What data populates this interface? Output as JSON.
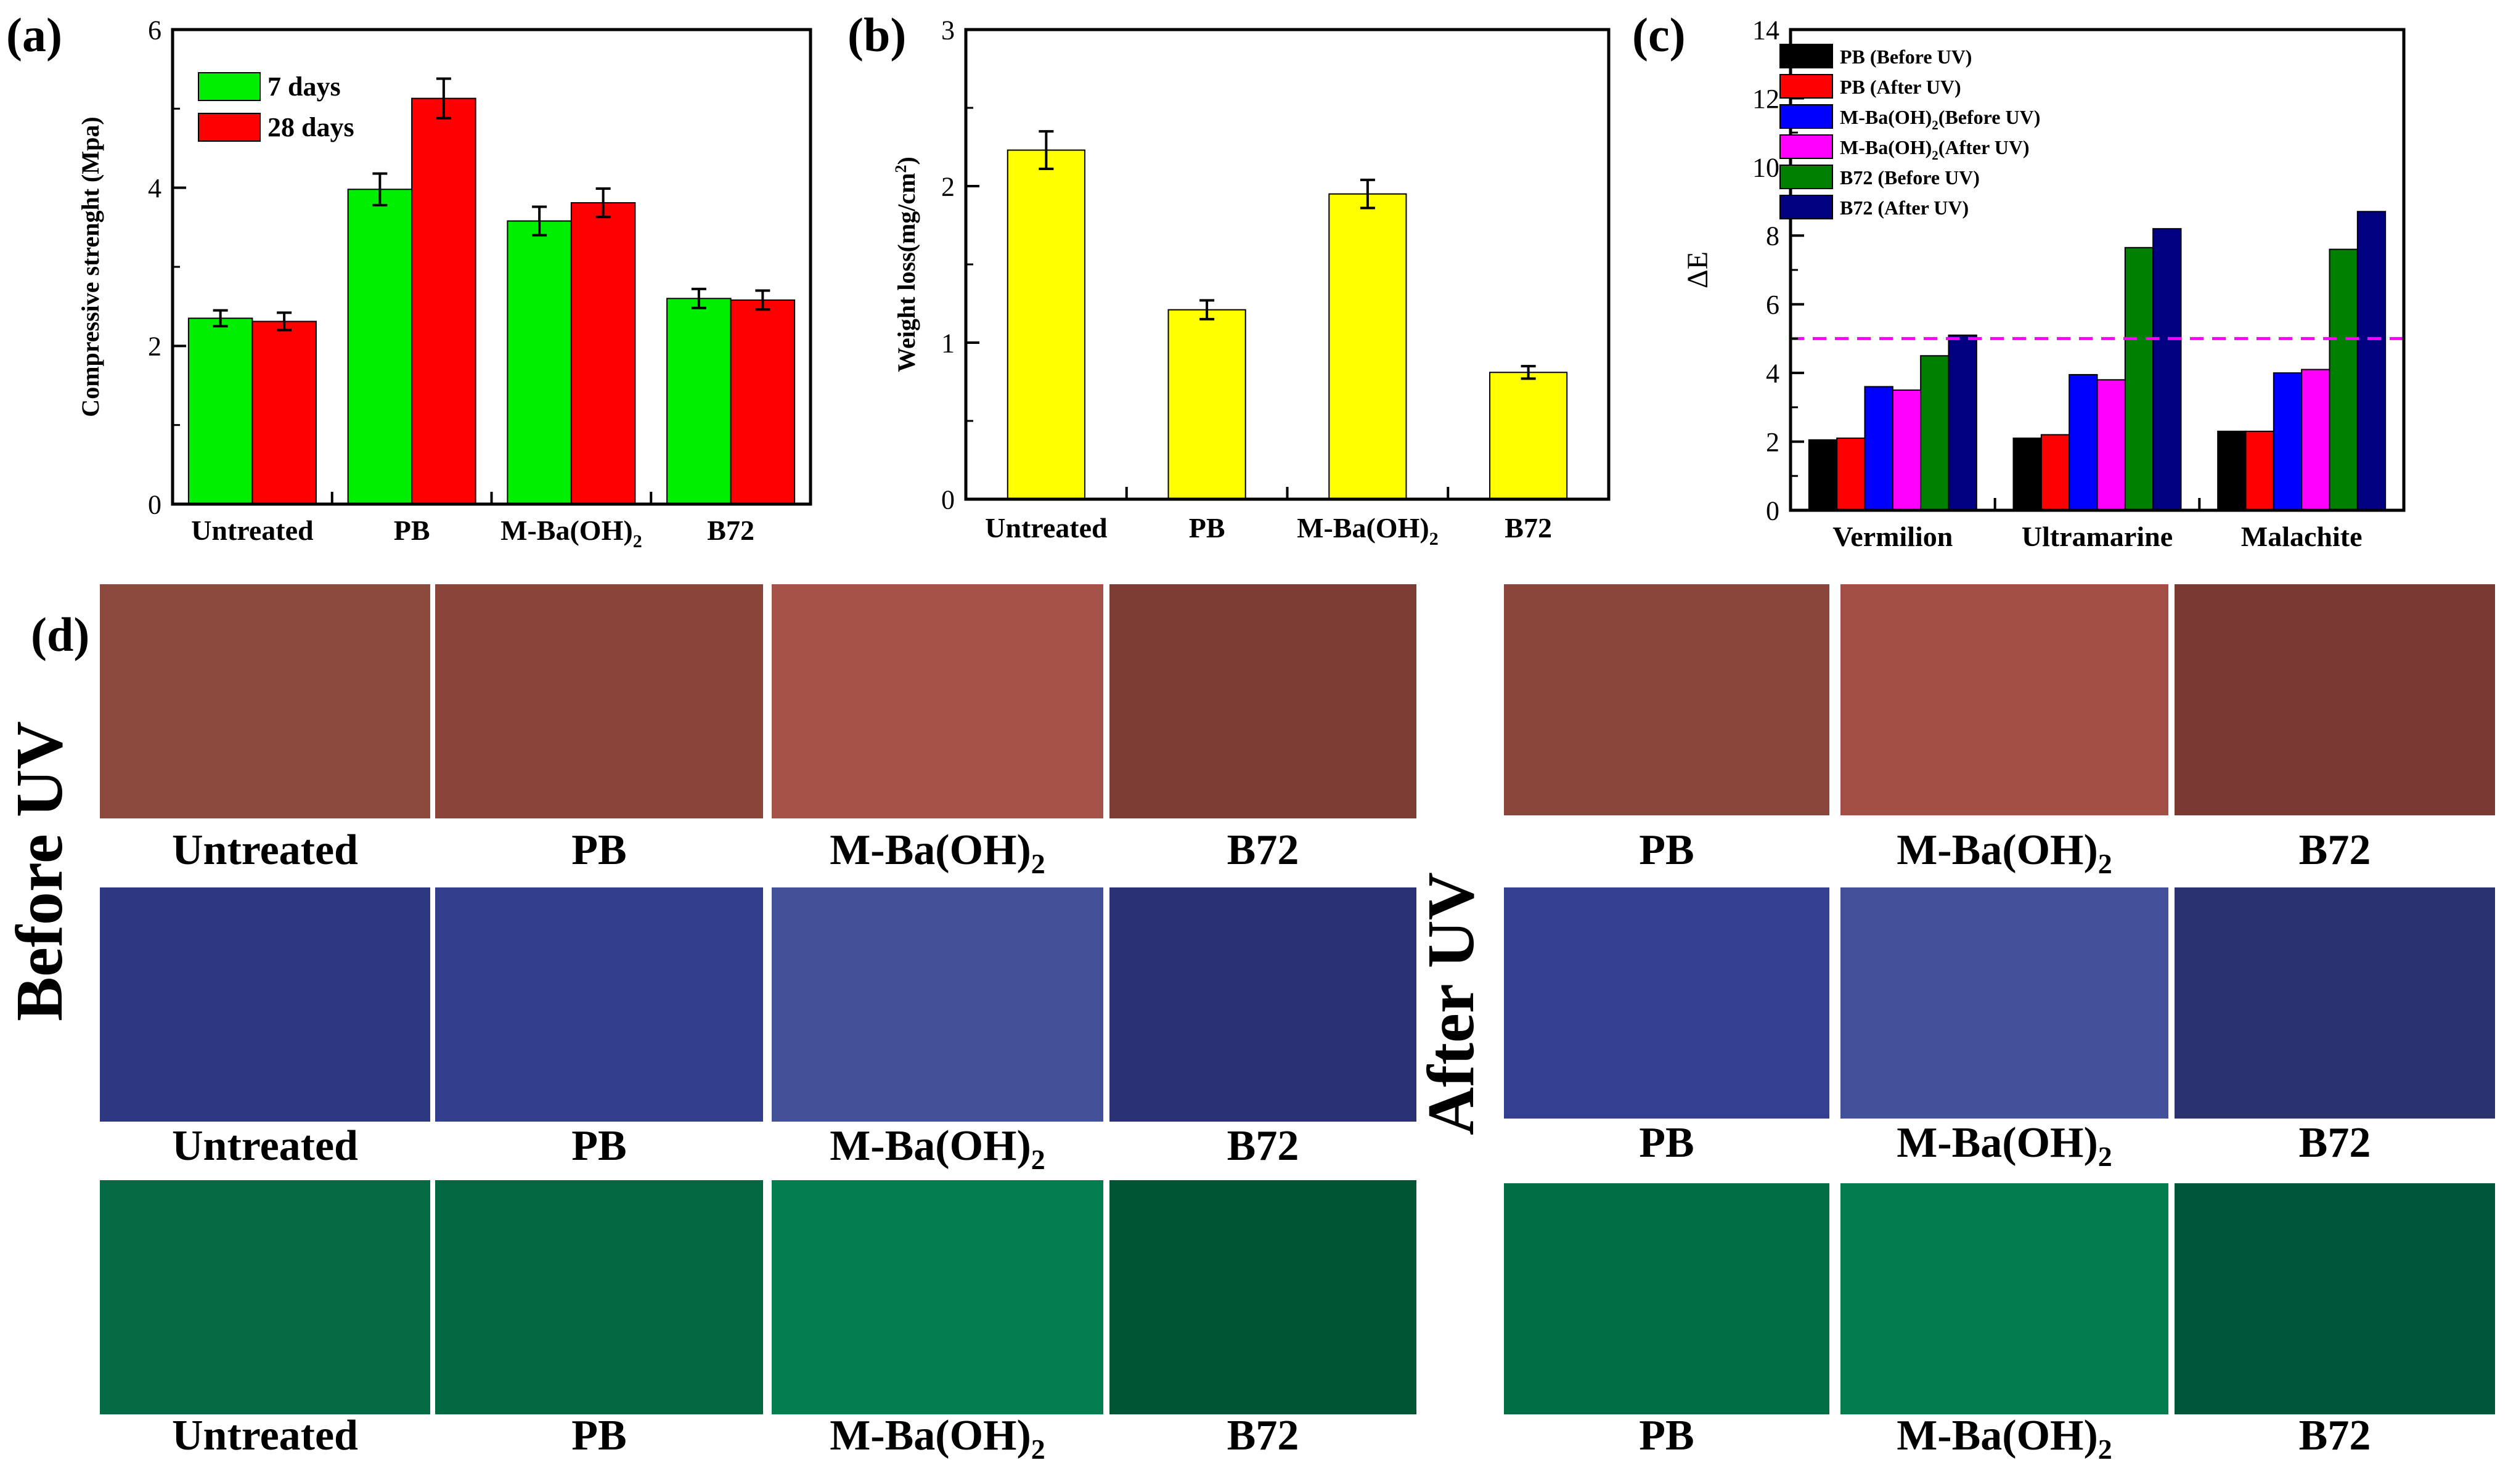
{
  "panels": {
    "a": "(a)",
    "b": "(b)",
    "c": "(c)",
    "d": "(d)"
  },
  "chart_data": [
    {
      "id": "a",
      "type": "bar",
      "title": "",
      "xlabel": "",
      "ylabel": "Compressive strenght (Mpa)",
      "ylim": [
        0,
        6
      ],
      "yticks": [
        "0",
        "2",
        "4",
        "6"
      ],
      "categories": [
        "Untreated",
        "PB",
        "M-Ba(OH)2",
        "B72"
      ],
      "series": [
        {
          "name": "7 days",
          "color": "#00ee00",
          "values": [
            2.35,
            3.98,
            3.58,
            2.6
          ],
          "errors": [
            0.1,
            0.2,
            0.18,
            0.12
          ]
        },
        {
          "name": "28 days",
          "color": "#ff0000",
          "values": [
            2.31,
            5.13,
            3.81,
            2.58
          ],
          "errors": [
            0.11,
            0.25,
            0.18,
            0.12
          ]
        }
      ],
      "legend": "top-left"
    },
    {
      "id": "b",
      "type": "bar",
      "title": "",
      "xlabel": "",
      "ylabel": "Weight loss(mg/cm2)",
      "ylim": [
        0,
        3
      ],
      "yticks": [
        "0",
        "1",
        "2",
        "3"
      ],
      "categories": [
        "Untreated",
        "PB",
        "M-Ba(OH)2",
        "B72"
      ],
      "series": [
        {
          "name": "Weight loss",
          "color": "#ffff00",
          "values": [
            2.23,
            1.21,
            1.95,
            0.81
          ],
          "errors": [
            0.12,
            0.06,
            0.09,
            0.04
          ]
        }
      ]
    },
    {
      "id": "c",
      "type": "bar",
      "title": "",
      "xlabel": "",
      "ylabel": "ΔE",
      "ylim": [
        0,
        14
      ],
      "yticks": [
        "0",
        "2",
        "4",
        "6",
        "8",
        "10",
        "12",
        "14"
      ],
      "categories": [
        "Vermilion",
        "Ultramarine",
        "Malachite"
      ],
      "series": [
        {
          "name": "PB (Before UV)",
          "color": "#000000",
          "values": [
            2.05,
            2.1,
            2.3
          ]
        },
        {
          "name": "PB (After UV)",
          "color": "#ff0000",
          "values": [
            2.1,
            2.2,
            2.3
          ]
        },
        {
          "name": "M-Ba(OH)2(Before UV)",
          "color": "#0000ff",
          "values": [
            3.6,
            3.95,
            4.0
          ]
        },
        {
          "name": "M-Ba(OH)2(After UV)",
          "color": "#ff00ff",
          "values": [
            3.5,
            3.8,
            4.1
          ]
        },
        {
          "name": "B72 (Before UV)",
          "color": "#008000",
          "values": [
            4.5,
            7.65,
            7.6
          ]
        },
        {
          "name": "B72 (After UV)",
          "color": "#000080",
          "values": [
            5.1,
            8.2,
            8.7
          ]
        }
      ],
      "reference_line": {
        "y": 5,
        "color": "#ff00ff",
        "style": "dashed"
      },
      "legend": "top-left"
    }
  ],
  "swatches": {
    "before_uv_label": "Before UV",
    "after_uv_label": "After UV",
    "before_rows": [
      {
        "colors": [
          "#8c4a3f",
          "#8a443a",
          "#a55248",
          "#7b3c34"
        ],
        "labels": [
          "Untreated",
          "PB",
          "M-Ba(OH)2",
          "B72"
        ]
      },
      {
        "colors": [
          "#2d3782",
          "#333f8d",
          "#435199",
          "#2a3275"
        ],
        "labels": [
          "Untreated",
          "PB",
          "M-Ba(OH)2",
          "B72"
        ]
      },
      {
        "colors": [
          "#046b44",
          "#026842",
          "#027e4f",
          "#005534"
        ],
        "labels": [
          "Untreated",
          "PB",
          "M-Ba(OH)2",
          "B72"
        ]
      }
    ],
    "after_rows": [
      {
        "colors": [
          "#8b463c",
          "#a44f45",
          "#7a3a33"
        ],
        "labels": [
          "PB",
          "M-Ba(OH)2",
          "B72"
        ]
      },
      {
        "colors": [
          "#343f8f",
          "#43509a",
          "#2b3270"
        ],
        "labels": [
          "PB",
          "M-Ba(OH)2",
          "B72"
        ]
      },
      {
        "colors": [
          "#026e45",
          "#037c4e",
          "#00563a"
        ],
        "labels": [
          "PB",
          "M-Ba(OH)2",
          "B72"
        ]
      }
    ]
  }
}
